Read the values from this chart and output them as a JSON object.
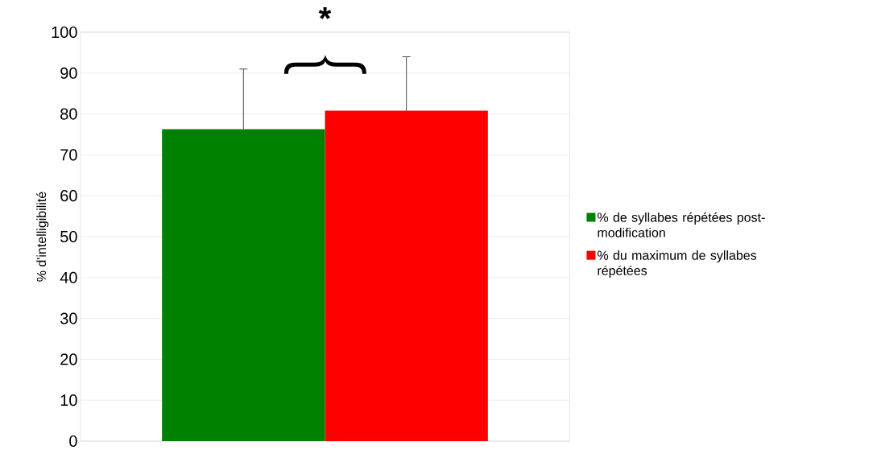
{
  "chart_data": {
    "type": "bar",
    "ylabel": "% d'intelligibilité",
    "categories": [
      null
    ],
    "series": [
      {
        "name": "% de syllabes répétées post-modification",
        "color": "#008000",
        "values": [
          76.3
        ],
        "errors": [
          [
            76.3,
            91.0
          ]
        ]
      },
      {
        "name": "% du maximum de syllabes répétées",
        "color": "#ff0000",
        "values": [
          80.8
        ],
        "errors": [
          [
            80.8,
            94.0
          ]
        ]
      }
    ],
    "ylim": [
      0,
      100
    ],
    "yticks": [
      0,
      10,
      20,
      30,
      40,
      50,
      60,
      70,
      80,
      90,
      100
    ],
    "grid": "y",
    "legend": "right",
    "annotations": [
      "*"
    ]
  }
}
